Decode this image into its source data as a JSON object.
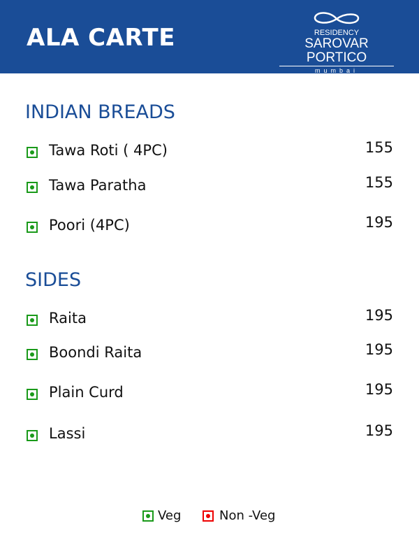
{
  "header": {
    "title": "ALA CARTE",
    "logo": {
      "line1": "RESIDENCY",
      "line2": "SAROVAR PORTICO",
      "line3": "mumbai"
    },
    "background_color": "#1a4d97"
  },
  "sections": [
    {
      "title": "INDIAN BREADS",
      "items": [
        {
          "name": "Tawa Roti ( 4PC)",
          "price": "155",
          "type": "veg"
        },
        {
          "name": "Tawa Paratha",
          "price": "155",
          "type": "veg"
        },
        {
          "name": "Poori (4PC)",
          "price": "195",
          "type": "veg"
        }
      ]
    },
    {
      "title": "SIDES",
      "items": [
        {
          "name": "Raita",
          "price": "195",
          "type": "veg"
        },
        {
          "name": "Boondi Raita",
          "price": "195",
          "type": "veg"
        },
        {
          "name": "Plain Curd",
          "price": "195",
          "type": "veg"
        },
        {
          "name": "Lassi",
          "price": "195",
          "type": "veg"
        }
      ]
    }
  ],
  "legend": {
    "veg": "Veg",
    "nonveg": "Non -Veg",
    "veg_color": "#1a9a1a",
    "nonveg_color": "#e00000"
  }
}
